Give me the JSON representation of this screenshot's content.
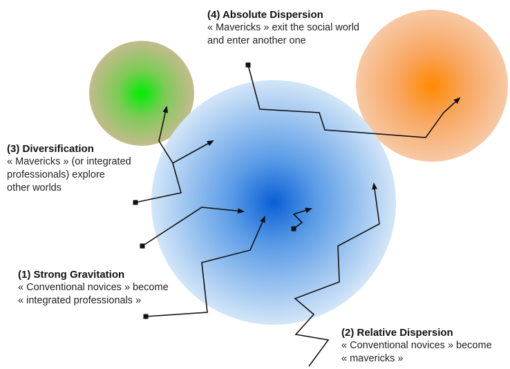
{
  "colors": {
    "social_world_center": "#0a5fd6",
    "social_world_edge": "#d3e6f8",
    "green_world_center": "#00ee00",
    "green_world_edge": "#c4bb8c",
    "orange_world_center": "#ff8a00",
    "orange_world_edge": "#f7c9a5",
    "path_stroke": "#111111"
  },
  "labels": {
    "absolute_dispersion": {
      "title": "(4) Absolute Dispersion",
      "lines": [
        "« Mavericks » exit the social world",
        "and enter another one"
      ]
    },
    "diversification": {
      "title": "(3) Diversification",
      "lines": [
        "« Mavericks » (or integrated",
        "professionals) explore",
        "other worlds"
      ]
    },
    "strong_gravitation": {
      "title": "(1) Strong Gravitation",
      "lines": [
        "« Conventional novices » become",
        "« integrated professionals »"
      ]
    },
    "relative_dispersion": {
      "title": "(2) Relative Dispersion",
      "lines": [
        "« Conventional novices » become",
        "« mavericks »"
      ]
    }
  }
}
